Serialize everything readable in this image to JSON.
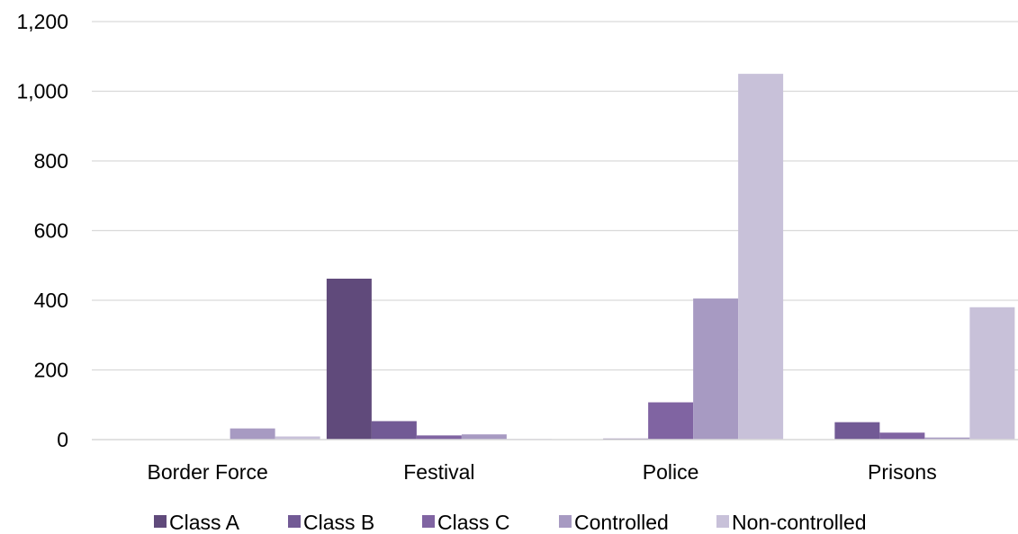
{
  "chart_data": {
    "type": "bar",
    "title": "",
    "xlabel": "",
    "ylabel": "",
    "ylim": [
      0,
      1200
    ],
    "yticks": [
      0,
      200,
      400,
      600,
      800,
      1000,
      1200
    ],
    "ytick_labels": [
      "0",
      "200",
      "400",
      "600",
      "800",
      "1,000",
      "1,200"
    ],
    "grid": true,
    "legend_position": "bottom",
    "categories": [
      "Border Force",
      "Festival",
      "Police",
      "Prisons"
    ],
    "series": [
      {
        "name": "Class A",
        "color": "#604a7b",
        "values": [
          0,
          462,
          0,
          0
        ]
      },
      {
        "name": "Class B",
        "color": "#725a95",
        "values": [
          0,
          53,
          3,
          50
        ]
      },
      {
        "name": "Class C",
        "color": "#8064a2",
        "values": [
          0,
          12,
          107,
          20
        ]
      },
      {
        "name": "Controlled",
        "color": "#a79ac2",
        "values": [
          32,
          15,
          405,
          6
        ]
      },
      {
        "name": "Non-controlled",
        "color": "#c8c1d9",
        "values": [
          9,
          2,
          1050,
          380
        ]
      }
    ]
  }
}
